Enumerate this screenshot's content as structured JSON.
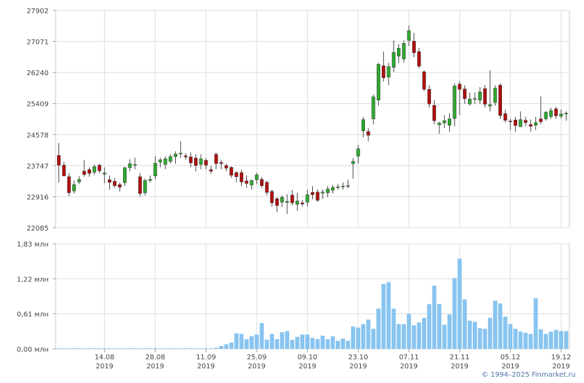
{
  "chart_data": [
    {
      "type": "candlestick",
      "title": "",
      "y_ticks": [
        "27902",
        "27071",
        "26240",
        "25409",
        "24578",
        "23747",
        "22916",
        "22085"
      ],
      "ylim": [
        22085,
        27902
      ],
      "grid": true,
      "colors": {
        "up": "#2ea82e",
        "down": "#b00f0f",
        "wick": "#444444"
      },
      "x": [
        "2019-08-01",
        "2019-08-02",
        "2019-08-05",
        "2019-08-06",
        "2019-08-07",
        "2019-08-08",
        "2019-08-09",
        "2019-08-12",
        "2019-08-13",
        "2019-08-14",
        "2019-08-15",
        "2019-08-16",
        "2019-08-19",
        "2019-08-20",
        "2019-08-21",
        "2019-08-22",
        "2019-08-23",
        "2019-08-26",
        "2019-08-27",
        "2019-08-28",
        "2019-08-29",
        "2019-08-30",
        "2019-09-02",
        "2019-09-03",
        "2019-09-04",
        "2019-09-05",
        "2019-09-06",
        "2019-09-09",
        "2019-09-10",
        "2019-09-11",
        "2019-09-12",
        "2019-09-13",
        "2019-09-16",
        "2019-09-17",
        "2019-09-18",
        "2019-09-19",
        "2019-09-20",
        "2019-09-23",
        "2019-09-24",
        "2019-09-25",
        "2019-09-26",
        "2019-09-27",
        "2019-09-30",
        "2019-10-01",
        "2019-10-02",
        "2019-10-03",
        "2019-10-04",
        "2019-10-07",
        "2019-10-08",
        "2019-10-09",
        "2019-10-10",
        "2019-10-11",
        "2019-10-14",
        "2019-10-15",
        "2019-10-16",
        "2019-10-17",
        "2019-10-18",
        "2019-10-21",
        "2019-10-22",
        "2019-10-23",
        "2019-10-24",
        "2019-10-25",
        "2019-10-28",
        "2019-10-29",
        "2019-10-30",
        "2019-10-31",
        "2019-11-01",
        "2019-11-05",
        "2019-11-06",
        "2019-11-07",
        "2019-11-08",
        "2019-11-11",
        "2019-11-12",
        "2019-11-13",
        "2019-11-14",
        "2019-11-15",
        "2019-11-18",
        "2019-11-19",
        "2019-11-20",
        "2019-11-21",
        "2019-11-22",
        "2019-11-25",
        "2019-11-26",
        "2019-11-27",
        "2019-11-28",
        "2019-11-29",
        "2019-12-02",
        "2019-12-03",
        "2019-12-04",
        "2019-12-05",
        "2019-12-06",
        "2019-12-09",
        "2019-12-10",
        "2019-12-11",
        "2019-12-12",
        "2019-12-13",
        "2019-12-16",
        "2019-12-17",
        "2019-12-18",
        "2019-12-19",
        "2019-12-20"
      ],
      "open": [
        24020,
        23760,
        23450,
        23070,
        23310,
        23600,
        23640,
        23570,
        23760,
        23520,
        23370,
        23330,
        23240,
        23290,
        23690,
        23760,
        23450,
        23020,
        23350,
        23470,
        23840,
        23780,
        23860,
        23990,
        24060,
        24010,
        23980,
        23950,
        23780,
        23890,
        23640,
        24050,
        23830,
        23750,
        23700,
        23560,
        23560,
        23340,
        23230,
        23370,
        23380,
        23300,
        23060,
        22860,
        22770,
        22760,
        22960,
        22710,
        22750,
        22770,
        23030,
        23040,
        23010,
        23020,
        23090,
        23170,
        23180,
        23200,
        23800,
        24000,
        24680,
        24660,
        25000,
        25500,
        26420,
        26120,
        26380,
        26680,
        26600,
        27100,
        27080,
        26800,
        26260,
        25790,
        25360,
        24840,
        24890,
        24830,
        25010,
        25930,
        25800,
        25400,
        25520,
        25500,
        25810,
        25340,
        25440,
        25900,
        25140,
        24940,
        24970,
        24790,
        24960,
        24850,
        24830,
        25000,
        25000,
        25060,
        25270,
        25070,
        25150
      ],
      "close": [
        23760,
        23470,
        23020,
        23240,
        23380,
        23510,
        23540,
        23720,
        23610,
        23550,
        23300,
        23210,
        23170,
        23690,
        23800,
        23780,
        23000,
        23350,
        23380,
        23810,
        23900,
        23930,
        23990,
        24060,
        24080,
        23980,
        23820,
        23750,
        23930,
        23760,
        23600,
        23800,
        23800,
        23680,
        23490,
        23450,
        23310,
        23270,
        23350,
        23500,
        23210,
        23030,
        22750,
        22680,
        22900,
        22790,
        22750,
        22800,
        22720,
        22970,
        22970,
        22820,
        23040,
        23120,
        23160,
        23180,
        23200,
        23210,
        23860,
        24200,
        24980,
        24560,
        25590,
        26460,
        26100,
        26400,
        26780,
        26890,
        27020,
        27360,
        26770,
        26410,
        25790,
        25400,
        24950,
        24890,
        24950,
        25000,
        25880,
        25790,
        25540,
        25530,
        25540,
        25720,
        25390,
        25380,
        25820,
        25090,
        24960,
        24920,
        24820,
        24980,
        24900,
        24800,
        24900,
        24920,
        25180,
        25220,
        25080,
        25130,
        25150
      ],
      "high": [
        24350,
        23850,
        23550,
        23350,
        23470,
        23900,
        23700,
        23780,
        23800,
        23700,
        23480,
        23420,
        23300,
        23720,
        23920,
        23960,
        23550,
        23400,
        23480,
        24000,
        23960,
        24000,
        24050,
        24130,
        24400,
        24080,
        24100,
        24050,
        24050,
        23950,
        23740,
        24100,
        23900,
        23800,
        23730,
        23600,
        23640,
        23480,
        23380,
        23560,
        23440,
        23340,
        23100,
        22900,
        22950,
        22980,
        23100,
        23020,
        22830,
        23100,
        23200,
        23120,
        23110,
        23200,
        23230,
        23260,
        23300,
        23370,
        23950,
        24300,
        25050,
        24750,
        25650,
        26500,
        26800,
        26500,
        27100,
        27000,
        27100,
        27500,
        27300,
        26900,
        26300,
        25900,
        25500,
        24920,
        25100,
        25150,
        25950,
        26000,
        25900,
        25700,
        25700,
        25850,
        25900,
        26300,
        25900,
        25950,
        25250,
        25000,
        25050,
        25200,
        25050,
        24980,
        25050,
        25600,
        25200,
        25300,
        25320,
        25250,
        25200
      ],
      "low": [
        23300,
        23500,
        22930,
        23000,
        23250,
        23450,
        23450,
        23500,
        23540,
        23280,
        23100,
        23150,
        23050,
        23200,
        23600,
        23650,
        22920,
        22950,
        23300,
        23380,
        23700,
        23650,
        23800,
        23800,
        23950,
        23900,
        23700,
        23600,
        23650,
        23650,
        23530,
        23650,
        23650,
        23600,
        23420,
        23300,
        23200,
        23150,
        23100,
        23250,
        23150,
        22950,
        22650,
        22500,
        22640,
        22450,
        22680,
        22540,
        22650,
        22650,
        22850,
        22780,
        22850,
        22900,
        23000,
        23100,
        23100,
        23140,
        23400,
        23800,
        24500,
        24400,
        24850,
        25350,
        26000,
        25900,
        26250,
        26500,
        26500,
        26950,
        26650,
        26350,
        25750,
        25300,
        24850,
        24600,
        24750,
        24650,
        24800,
        25100,
        25400,
        25350,
        25400,
        25400,
        25300,
        25200,
        25350,
        25000,
        24900,
        24700,
        24650,
        24780,
        24800,
        24650,
        24700,
        24850,
        24950,
        25000,
        25000,
        25000,
        24950
      ]
    },
    {
      "type": "bar",
      "title": "",
      "y_ticks": [
        "1,83 млн",
        "1,22 млн",
        "0,61 млн",
        "0,00 млн"
      ],
      "ylim": [
        0,
        1.83
      ],
      "units": "млн",
      "grid": true,
      "color": "#88c4f0",
      "x_ticks": [
        {
          "day": "14.08",
          "year": "2019"
        },
        {
          "day": "28.08",
          "year": "2019"
        },
        {
          "day": "11.09",
          "year": "2019"
        },
        {
          "day": "25.09",
          "year": "2019"
        },
        {
          "day": "09.10",
          "year": "2019"
        },
        {
          "day": "23.10",
          "year": "2019"
        },
        {
          "day": "07.11",
          "year": "2019"
        },
        {
          "day": "21.11",
          "year": "2019"
        },
        {
          "day": "05.12",
          "year": "2019"
        },
        {
          "day": "19.12",
          "year": "2019"
        }
      ],
      "values": [
        0.01,
        0.01,
        0.01,
        0.01,
        0.01,
        0.01,
        0.01,
        0.01,
        0.01,
        0.01,
        0.01,
        0.01,
        0.01,
        0.01,
        0.01,
        0.01,
        0.01,
        0.01,
        0.01,
        0.01,
        0.01,
        0.01,
        0.01,
        0.01,
        0.01,
        0.01,
        0.01,
        0.01,
        0.01,
        0.01,
        0.01,
        0.02,
        0.05,
        0.08,
        0.11,
        0.27,
        0.26,
        0.17,
        0.22,
        0.25,
        0.45,
        0.16,
        0.26,
        0.17,
        0.29,
        0.31,
        0.16,
        0.21,
        0.25,
        0.25,
        0.19,
        0.17,
        0.23,
        0.17,
        0.22,
        0.14,
        0.18,
        0.14,
        0.39,
        0.37,
        0.43,
        0.51,
        0.35,
        0.7,
        1.13,
        1.16,
        0.7,
        0.43,
        0.43,
        0.61,
        0.41,
        0.46,
        0.54,
        0.78,
        1.1,
        0.78,
        0.42,
        0.6,
        1.23,
        1.57,
        0.86,
        0.49,
        0.47,
        0.36,
        0.35,
        0.54,
        0.84,
        0.79,
        0.56,
        0.43,
        0.35,
        0.3,
        0.28,
        0.26,
        0.88,
        0.34,
        0.26,
        0.3,
        0.33,
        0.31,
        0.31
      ]
    }
  ],
  "footer": {
    "copyright": "© 1994–2025 Finmarket.ru"
  }
}
